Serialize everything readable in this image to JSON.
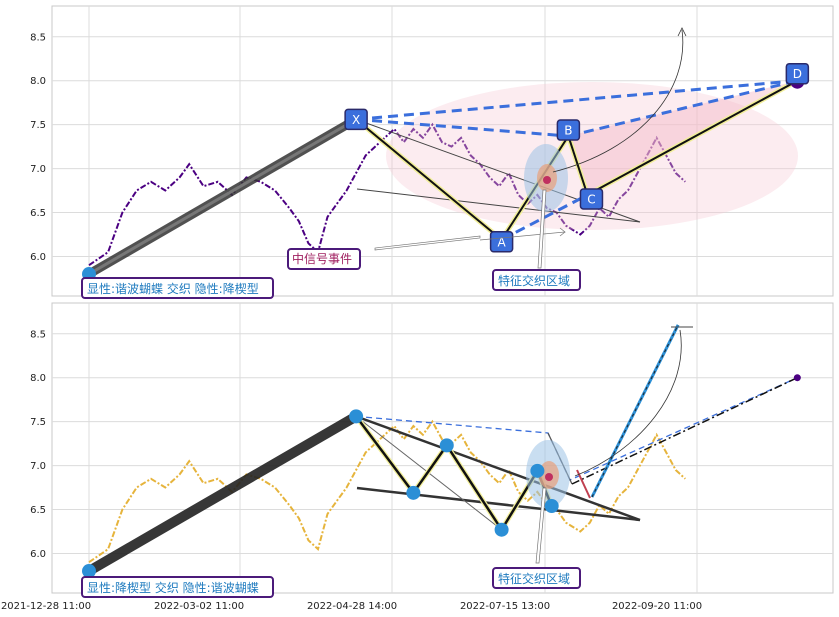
{
  "chart_data": [
    {
      "type": "line",
      "panel": "top",
      "ylim": [
        5.55,
        8.85
      ],
      "yticks": [
        "6.0",
        "6.5",
        "7.0",
        "7.5",
        "8.0",
        "8.5"
      ],
      "grid": true,
      "price_color": "#4b0082",
      "price_path": [
        [
          0,
          5.9
        ],
        [
          8,
          6.05
        ],
        [
          14,
          6.5
        ],
        [
          20,
          6.75
        ],
        [
          26,
          6.85
        ],
        [
          32,
          6.75
        ],
        [
          38,
          6.9
        ],
        [
          42,
          7.05
        ],
        [
          48,
          6.8
        ],
        [
          54,
          6.85
        ],
        [
          60,
          6.7
        ],
        [
          66,
          6.9
        ],
        [
          72,
          6.85
        ],
        [
          78,
          6.75
        ],
        [
          84,
          6.55
        ],
        [
          88,
          6.4
        ],
        [
          92,
          6.15
        ],
        [
          96,
          6.05
        ],
        [
          100,
          6.45
        ],
        [
          104,
          6.6
        ],
        [
          108,
          6.75
        ],
        [
          112,
          6.95
        ],
        [
          116,
          7.15
        ],
        [
          120,
          7.25
        ],
        [
          124,
          7.35
        ],
        [
          128,
          7.45
        ],
        [
          132,
          7.3
        ],
        [
          136,
          7.45
        ],
        [
          140,
          7.35
        ],
        [
          144,
          7.5
        ],
        [
          148,
          7.3
        ],
        [
          152,
          7.25
        ],
        [
          156,
          7.35
        ],
        [
          160,
          7.15
        ],
        [
          164,
          7.05
        ],
        [
          168,
          6.9
        ],
        [
          172,
          6.8
        ],
        [
          176,
          6.95
        ],
        [
          180,
          6.7
        ],
        [
          184,
          6.6
        ],
        [
          188,
          6.7
        ],
        [
          192,
          6.55
        ],
        [
          196,
          6.5
        ],
        [
          200,
          6.35
        ],
        [
          206,
          6.25
        ],
        [
          210,
          6.35
        ],
        [
          214,
          6.55
        ],
        [
          218,
          6.45
        ],
        [
          222,
          6.65
        ],
        [
          226,
          6.75
        ],
        [
          230,
          6.95
        ],
        [
          234,
          7.15
        ],
        [
          238,
          7.35
        ],
        [
          242,
          7.15
        ],
        [
          246,
          6.95
        ],
        [
          250,
          6.85
        ]
      ],
      "harmonic_points": [
        {
          "label": "X",
          "x": 112,
          "y": 7.56
        },
        {
          "label": "A",
          "x": 173,
          "y": 6.19
        },
        {
          "label": "B",
          "x": 201,
          "y": 7.37
        },
        {
          "label": "C",
          "x": 209,
          "y": 6.7
        },
        {
          "label": "D",
          "x": 297,
          "y": 8.0
        }
      ],
      "origin": {
        "x": 0,
        "y": 5.8
      },
      "annotations": [
        {
          "text": "显性:谐波蝴蝶 交织 隐性:降楔型",
          "color": "#1f7bbf"
        },
        {
          "text": "中信号事件",
          "color": "#a02060"
        },
        {
          "text": "特征交织区域",
          "color": "#1f7bbf"
        }
      ]
    },
    {
      "type": "line",
      "panel": "bottom",
      "ylim": [
        5.55,
        8.85
      ],
      "yticks": [
        "6.0",
        "6.5",
        "7.0",
        "7.5",
        "8.0",
        "8.5"
      ],
      "xticks": [
        "2021-12-28 11:00",
        "2022-03-02 11:00",
        "2022-04-28 14:00",
        "2022-07-15 13:00",
        "2022-09-20 11:00"
      ],
      "grid": true,
      "price_color": "#e6b43c",
      "price_path": [
        [
          0,
          5.9
        ],
        [
          8,
          6.05
        ],
        [
          14,
          6.5
        ],
        [
          20,
          6.75
        ],
        [
          26,
          6.85
        ],
        [
          32,
          6.75
        ],
        [
          38,
          6.9
        ],
        [
          42,
          7.05
        ],
        [
          48,
          6.8
        ],
        [
          54,
          6.85
        ],
        [
          60,
          6.7
        ],
        [
          66,
          6.9
        ],
        [
          72,
          6.85
        ],
        [
          78,
          6.75
        ],
        [
          84,
          6.55
        ],
        [
          88,
          6.4
        ],
        [
          92,
          6.15
        ],
        [
          96,
          6.05
        ],
        [
          100,
          6.45
        ],
        [
          104,
          6.6
        ],
        [
          108,
          6.75
        ],
        [
          112,
          6.95
        ],
        [
          116,
          7.15
        ],
        [
          120,
          7.25
        ],
        [
          124,
          7.35
        ],
        [
          128,
          7.45
        ],
        [
          132,
          7.3
        ],
        [
          136,
          7.45
        ],
        [
          140,
          7.35
        ],
        [
          144,
          7.5
        ],
        [
          148,
          7.3
        ],
        [
          152,
          7.25
        ],
        [
          156,
          7.35
        ],
        [
          160,
          7.15
        ],
        [
          164,
          7.05
        ],
        [
          168,
          6.9
        ],
        [
          172,
          6.8
        ],
        [
          176,
          6.95
        ],
        [
          180,
          6.7
        ],
        [
          184,
          6.6
        ],
        [
          188,
          6.7
        ],
        [
          192,
          6.55
        ],
        [
          196,
          6.5
        ],
        [
          200,
          6.35
        ],
        [
          206,
          6.25
        ],
        [
          210,
          6.35
        ],
        [
          214,
          6.55
        ],
        [
          218,
          6.45
        ],
        [
          222,
          6.65
        ],
        [
          226,
          6.75
        ],
        [
          230,
          6.95
        ],
        [
          234,
          7.15
        ],
        [
          238,
          7.35
        ],
        [
          242,
          7.15
        ],
        [
          246,
          6.95
        ],
        [
          250,
          6.85
        ]
      ],
      "wedge_points": [
        {
          "x": 0,
          "y": 5.8
        },
        {
          "x": 112,
          "y": 7.56
        },
        {
          "x": 136,
          "y": 6.69
        },
        {
          "x": 150,
          "y": 7.23
        },
        {
          "x": 173,
          "y": 6.27
        },
        {
          "x": 188,
          "y": 6.94
        },
        {
          "x": 194,
          "y": 6.54
        }
      ],
      "target_point": {
        "x": 297,
        "y": 8.0
      },
      "projection_top": {
        "x": 247,
        "y": 8.6
      },
      "annotations": [
        {
          "text": "显性:降楔型 交织 隐性:谐波蝴蝶",
          "color": "#1f7bbf"
        },
        {
          "text": "特征交织区域",
          "color": "#1f7bbf"
        }
      ]
    }
  ]
}
